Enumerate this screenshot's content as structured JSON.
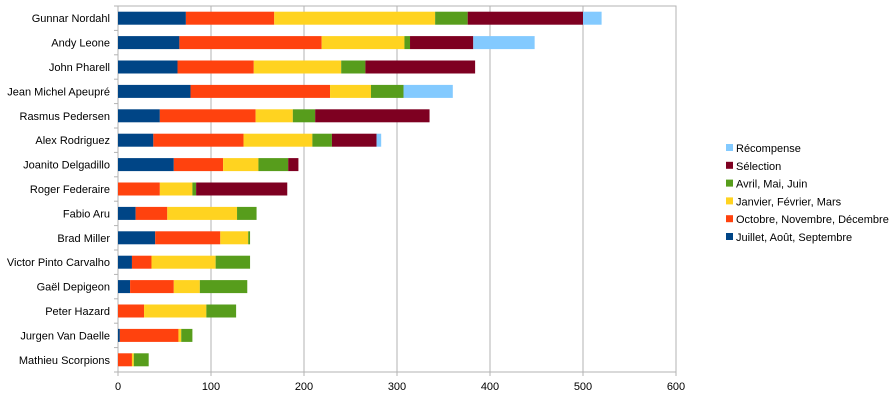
{
  "chart_data": {
    "type": "bar",
    "orientation": "horizontal",
    "stacked": true,
    "categories": [
      "Gunnar Nordahl",
      "Andy Leone",
      "John Pharell",
      "Jean Michel Apeupré",
      "Rasmus Pedersen",
      "Alex Rodriguez",
      "Joanito Delgadillo",
      "Roger Federaire",
      "Fabio Aru",
      "Brad Miller",
      "Victor Pinto Carvalho",
      "Gaël Depigeon",
      "Peter Hazard",
      "Jurgen Van Daelle",
      "Mathieu Scorpions"
    ],
    "series": [
      {
        "name": "Juillet, Août, Septembre",
        "color": "#004586",
        "values": [
          73,
          66,
          64,
          78,
          45,
          38,
          60,
          0,
          19,
          40,
          15,
          13,
          0,
          2,
          0
        ]
      },
      {
        "name": "Octobre, Novembre, Décembre",
        "color": "#ff420e",
        "values": [
          95,
          153,
          82,
          150,
          103,
          97,
          53,
          45,
          34,
          70,
          21,
          47,
          28,
          63,
          15
        ]
      },
      {
        "name": "Janvier, Février, Mars",
        "color": "#ffd320",
        "values": [
          173,
          89,
          94,
          44,
          40,
          74,
          38,
          35,
          75,
          30,
          69,
          28,
          67,
          3,
          2
        ]
      },
      {
        "name": "Avril, Mai, Juin",
        "color": "#579d1c",
        "values": [
          35,
          6,
          26,
          35,
          24,
          21,
          32,
          4,
          21,
          2,
          37,
          51,
          32,
          12,
          16
        ]
      },
      {
        "name": "Sélection",
        "color": "#7e0021",
        "values": [
          124,
          68,
          118,
          0,
          123,
          48,
          11,
          98,
          0,
          0,
          0,
          0,
          0,
          0,
          0
        ]
      },
      {
        "name": "Récompense",
        "color": "#83caff",
        "values": [
          20,
          66,
          0,
          53,
          0,
          5,
          0,
          0,
          0,
          0,
          0,
          0,
          0,
          0,
          0
        ]
      }
    ],
    "xlim": [
      0,
      600
    ],
    "xticks": [
      0,
      100,
      200,
      300,
      400,
      500,
      600
    ],
    "grid": true,
    "legend_position": "right"
  }
}
